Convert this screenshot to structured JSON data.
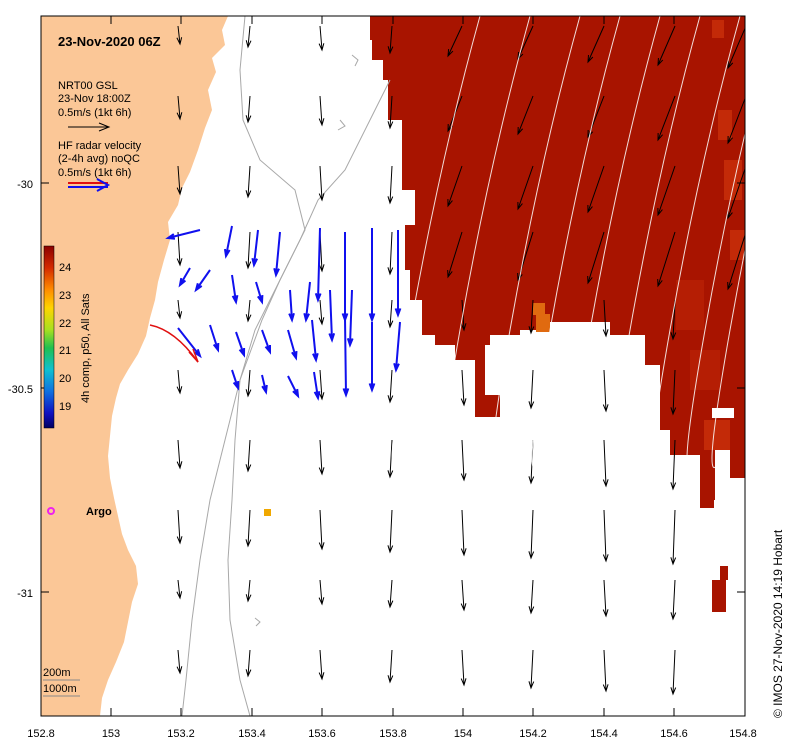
{
  "title": "23-Nov-2020 06Z",
  "model_legend": {
    "line1": "NRT00 GSL",
    "line2": "23-Nov 18:00Z",
    "line3": "0.5m/s (1kt 6h)"
  },
  "radar_legend": {
    "line1": "HF radar velocity",
    "line2": "(2-4h avg) noQC",
    "line3": "0.5m/s (1kt 6h)"
  },
  "colorbar": {
    "label": "4h comp, p50, All Sats",
    "ticks": [
      "24",
      "23",
      "22",
      "21",
      "20",
      "19"
    ]
  },
  "argo_label": "Argo",
  "depth_legend": {
    "line1": "200m",
    "line2": "1000m"
  },
  "credit": "© IMOS 27-Nov-2020 14:19 Hobart",
  "axes": {
    "x_ticks": [
      "152.8",
      "153",
      "153.2",
      "153.4",
      "153.6",
      "153.8",
      "154",
      "154.2",
      "154.4",
      "154.6",
      "154.8"
    ],
    "y_ticks": [
      "-30",
      "-30.5",
      "-31"
    ],
    "xlim": [
      152.8,
      154.8
    ],
    "ylim": [
      -31.3,
      -29.58
    ]
  },
  "colors": {
    "land": "#fbc797",
    "sst_warm": "#a81400",
    "sst_orange": "#e06a10",
    "radar_arrow": "#1010ee",
    "radar_arrow_ref": "#e01010",
    "model_arrow": "#000000",
    "argo_marker": "#ee22ee",
    "isobath": "#a8a8a8"
  }
}
